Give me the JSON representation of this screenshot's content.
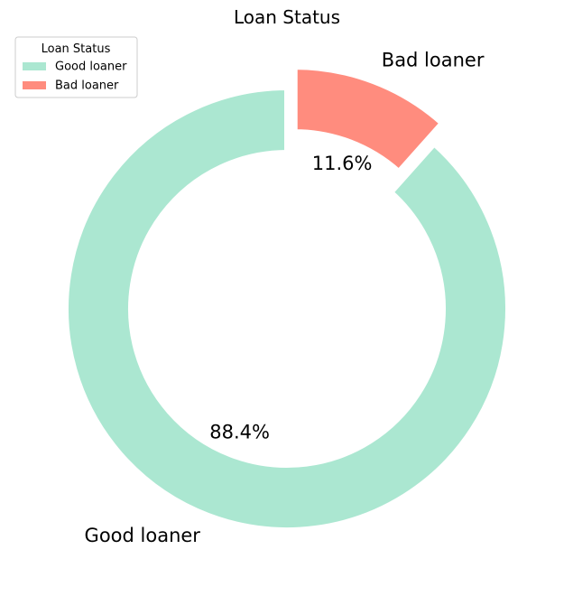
{
  "chart_data": {
    "type": "pie",
    "title": "Loan Status",
    "donut": true,
    "start_angle_deg": 90,
    "direction": "counterclockwise",
    "exploded": [
      "Bad loaner"
    ],
    "slices": [
      {
        "label": "Good loaner",
        "value": 88.4,
        "pct_label": "88.4%",
        "color": "#abe7d1"
      },
      {
        "label": "Bad loaner",
        "value": 11.6,
        "pct_label": "11.6%",
        "color": "#ff8c7e"
      }
    ],
    "legend": {
      "title": "Loan Status",
      "position": "upper-left",
      "entries": [
        "Good loaner",
        "Bad loaner"
      ]
    }
  }
}
